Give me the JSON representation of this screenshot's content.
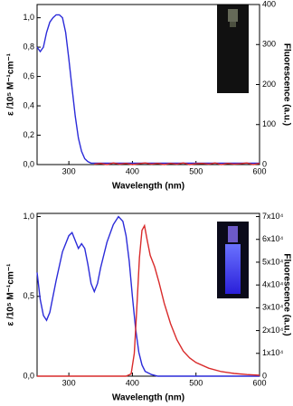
{
  "chart_data": [
    {
      "type": "line",
      "x_label": "Wavelength (nm)",
      "y_label": "ε /10⁵ M⁻¹cm⁻¹",
      "y2_label": "Fluorescence (a.u.)",
      "xlim": [
        250,
        600
      ],
      "xticks": [
        300,
        400,
        500,
        600
      ],
      "ylim": [
        0,
        1.09
      ],
      "yticks": [
        {
          "value": 0,
          "label": "0,0"
        },
        {
          "value": 0.2,
          "label": "0,2"
        },
        {
          "value": 0.4,
          "label": "0,4"
        },
        {
          "value": 0.6,
          "label": "0,6"
        },
        {
          "value": 0.8,
          "label": "0,8"
        },
        {
          "value": 1.0,
          "label": "1,0"
        }
      ],
      "y2lim": [
        0,
        400
      ],
      "y2ticks": [
        0,
        100,
        200,
        300,
        400
      ],
      "series": [
        {
          "color": "#2b2bd9",
          "x": [
            250,
            255,
            260,
            265,
            270,
            275,
            280,
            285,
            290,
            295,
            300,
            305,
            310,
            315,
            320,
            325,
            330,
            335,
            340,
            360,
            400,
            450,
            500,
            550,
            600
          ],
          "values": [
            0.8,
            0.77,
            0.8,
            0.9,
            0.97,
            1.0,
            1.02,
            1.02,
            1.0,
            0.9,
            0.72,
            0.52,
            0.33,
            0.18,
            0.09,
            0.04,
            0.02,
            0.01,
            0.01,
            0.01,
            0.01,
            0.01,
            0.01,
            0.01,
            0.01
          ]
        },
        {
          "color": "#d92b2b",
          "axis": "y2",
          "x": [
            340,
            350,
            360,
            370,
            380,
            390,
            400,
            410,
            420,
            430,
            440,
            450,
            460,
            470,
            480,
            490,
            500,
            510,
            520,
            530,
            540,
            550,
            560,
            570,
            580,
            590,
            600
          ],
          "values": [
            1,
            3,
            0,
            4,
            1,
            3,
            0,
            2,
            4,
            1,
            3,
            0,
            3,
            1,
            4,
            0,
            2,
            3,
            1,
            4,
            0,
            3,
            1,
            2,
            4,
            0,
            3
          ]
        }
      ]
    },
    {
      "type": "line",
      "x_label": "Wavelength (nm)",
      "y_label": "ε /10⁵ M⁻¹cm⁻¹",
      "y2_label": "Fluorescence (a.u.)",
      "xlim": [
        250,
        600
      ],
      "xticks": [
        300,
        400,
        500,
        600
      ],
      "ylim": [
        0,
        1.02
      ],
      "yticks": [
        {
          "value": 0,
          "label": "0,0"
        },
        {
          "value": 0.5,
          "label": "0,5"
        },
        {
          "value": 1.0,
          "label": "1,0"
        }
      ],
      "y2lim": [
        0,
        71400
      ],
      "y2ticks": [
        0,
        {
          "value": 10000,
          "label": "1x10⁴"
        },
        {
          "value": 20000,
          "label": "2x10⁴"
        },
        {
          "value": 30000,
          "label": "3x10⁴"
        },
        {
          "value": 40000,
          "label": "4x10⁴"
        },
        {
          "value": 50000,
          "label": "5x10⁴"
        },
        {
          "value": 60000,
          "label": "6x10⁴"
        },
        {
          "value": 70000,
          "label": "7x10⁴"
        }
      ],
      "series": [
        {
          "color": "#2b2bd9",
          "x": [
            250,
            255,
            260,
            265,
            270,
            275,
            280,
            290,
            300,
            305,
            310,
            315,
            320,
            325,
            330,
            335,
            340,
            345,
            350,
            360,
            370,
            378,
            385,
            390,
            395,
            400,
            405,
            410,
            415,
            420,
            430,
            440,
            460,
            500,
            600
          ],
          "values": [
            0.65,
            0.48,
            0.38,
            0.35,
            0.4,
            0.5,
            0.6,
            0.78,
            0.88,
            0.9,
            0.85,
            0.8,
            0.83,
            0.8,
            0.7,
            0.58,
            0.53,
            0.58,
            0.68,
            0.84,
            0.95,
            1.0,
            0.97,
            0.88,
            0.72,
            0.5,
            0.3,
            0.15,
            0.07,
            0.03,
            0.01,
            0.0,
            0.0,
            0.0,
            0.0
          ]
        },
        {
          "color": "#d92b2b",
          "axis": "y2",
          "x": [
            250,
            390,
            398,
            403,
            407,
            411,
            415,
            419,
            423,
            428,
            435,
            442,
            450,
            460,
            470,
            480,
            490,
            500,
            520,
            540,
            560,
            580,
            600
          ],
          "values": [
            0,
            0,
            1000,
            10000,
            30000,
            52000,
            64000,
            66000,
            60000,
            53000,
            48000,
            41000,
            32000,
            23000,
            16000,
            11000,
            8000,
            6000,
            3500,
            2000,
            1200,
            700,
            400
          ]
        }
      ]
    }
  ]
}
